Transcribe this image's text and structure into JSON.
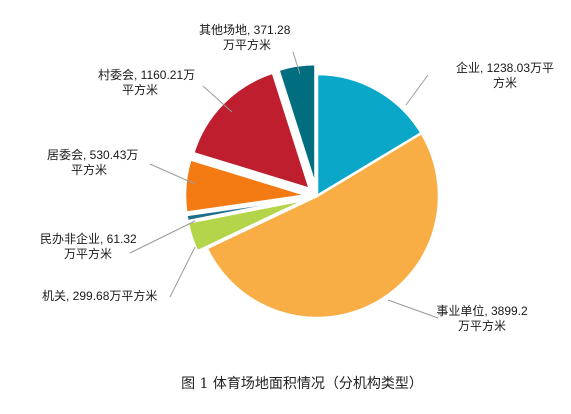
{
  "chart_data": {
    "type": "pie",
    "caption": "图 1 体育场地面积情况（分机构类型）",
    "unit": "万平方米",
    "slices": [
      {
        "name": "企业",
        "value": 1238.03,
        "color": "#0aa7c9",
        "label_lines": [
          "企业, 1238.03万平",
          "方米"
        ]
      },
      {
        "name": "事业单位",
        "value": 3899.2,
        "color": "#f8ad45",
        "label_lines": [
          "事业单位, 3899.2",
          "万平方米"
        ]
      },
      {
        "name": "机关",
        "value": 299.68,
        "color": "#b4d44a",
        "label_lines": [
          "机关, 299.68万平方米"
        ]
      },
      {
        "name": "民办非企业",
        "value": 61.32,
        "color": "#1e6f8c",
        "label_lines": [
          "民办非企业, 61.32",
          "万平方米"
        ]
      },
      {
        "name": "居委会",
        "value": 530.43,
        "color": "#f47a14",
        "label_lines": [
          "居委会, 530.43万",
          "平方米"
        ]
      },
      {
        "name": "村委会",
        "value": 1160.21,
        "color": "#be1e2d",
        "label_lines": [
          "村委会, 1160.21万",
          "平方米"
        ]
      },
      {
        "name": "其他场地",
        "value": 371.28,
        "color": "#006e7f",
        "label_lines": [
          "其他场地, 371.28",
          "万平方米"
        ]
      }
    ]
  }
}
